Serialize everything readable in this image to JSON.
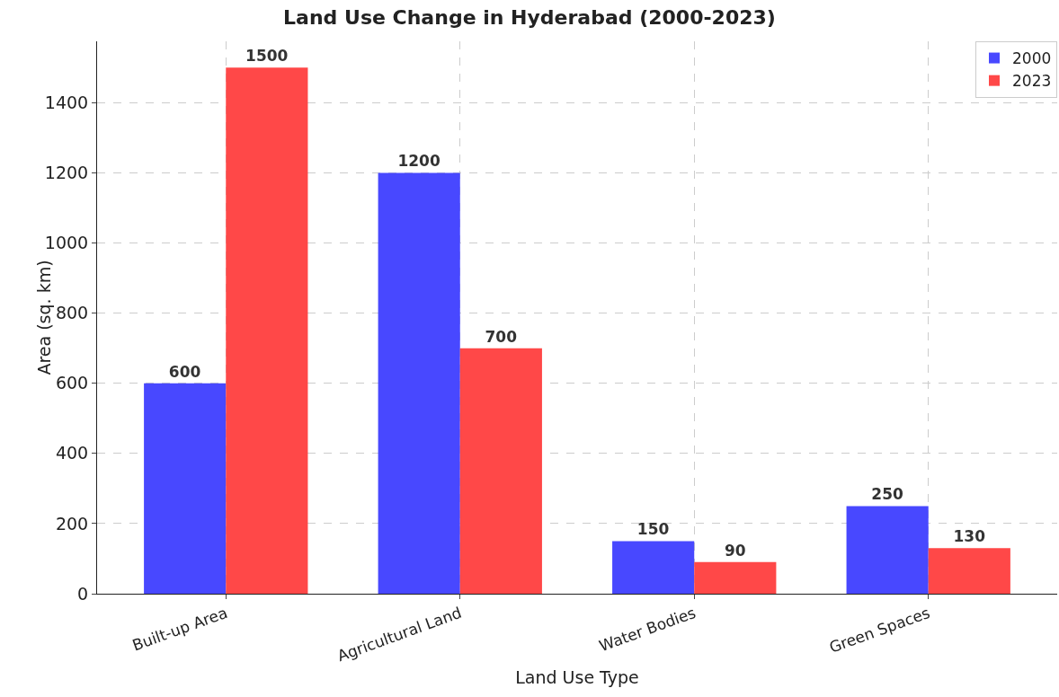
{
  "chart_data": {
    "type": "bar",
    "title": "Land Use Change in Hyderabad (2000-2023)",
    "xlabel": "Land Use Type",
    "ylabel": "Area (sq. km)",
    "categories": [
      "Built-up Area",
      "Agricultural Land",
      "Water Bodies",
      "Green Spaces"
    ],
    "series": [
      {
        "name": "2000",
        "color": "#4848ff",
        "values": [
          600,
          1200,
          150,
          250
        ]
      },
      {
        "name": "2023",
        "color": "#ff4848",
        "values": [
          1500,
          700,
          90,
          130
        ]
      }
    ],
    "ylim": [
      0,
      1575
    ],
    "yticks": [
      0,
      200,
      400,
      600,
      800,
      1000,
      1200,
      1400
    ],
    "grid": true,
    "legend": "top right",
    "data_labels": true
  }
}
